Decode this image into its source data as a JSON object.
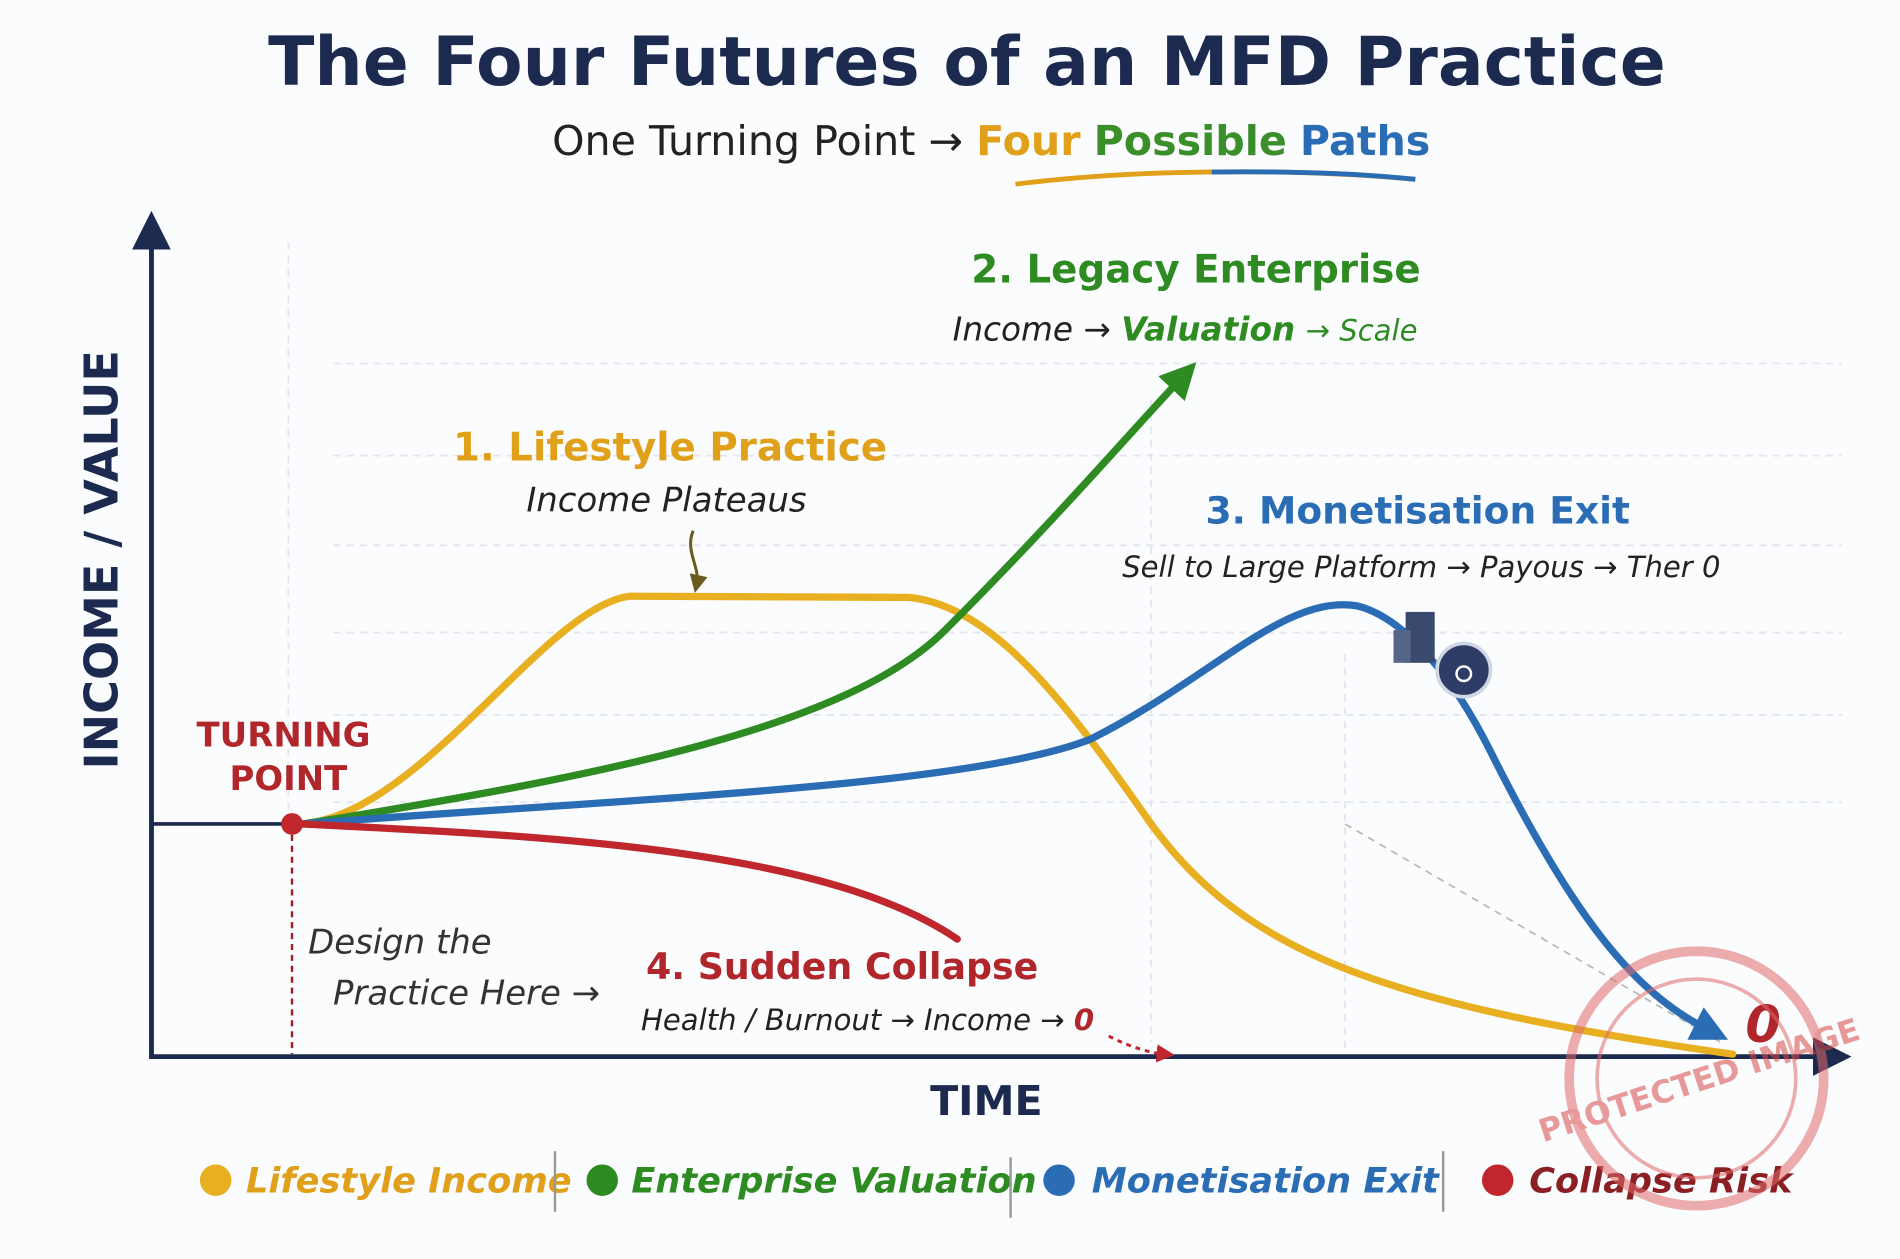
{
  "header": {
    "title": "The Four Futures of an MFD Practice",
    "subtitle": {
      "lead": "One Turning Point →",
      "words": [
        "Four",
        "Possible",
        "Paths"
      ]
    }
  },
  "axes": {
    "y": "INCOME / VALUE",
    "x": "TIME"
  },
  "turning_point": [
    "TURNING",
    "POINT"
  ],
  "paths": [
    {
      "title": "1. Lifestyle Practice",
      "note": [
        "Income Plateaus"
      ]
    },
    {
      "title": "2. Legacy Enterprise",
      "note": [
        "Income →",
        "Valuation",
        "→ Scale"
      ]
    },
    {
      "title": "3. Monetisation Exit",
      "note": [
        "Sell to Large Platform → Payous → Ther 0"
      ]
    },
    {
      "title": "4. Sudden Collapse",
      "note": [
        "Health / Burnout → Income →",
        "0"
      ]
    }
  ],
  "design_note": [
    "Design the",
    "Practice Here →"
  ],
  "end_label": "0",
  "legend": [
    "Lifestyle Income",
    "Enterprise Valuation",
    "Monetisation Exit",
    "Collapse Risk"
  ],
  "watermark": "PROTECTED IMAGE"
}
